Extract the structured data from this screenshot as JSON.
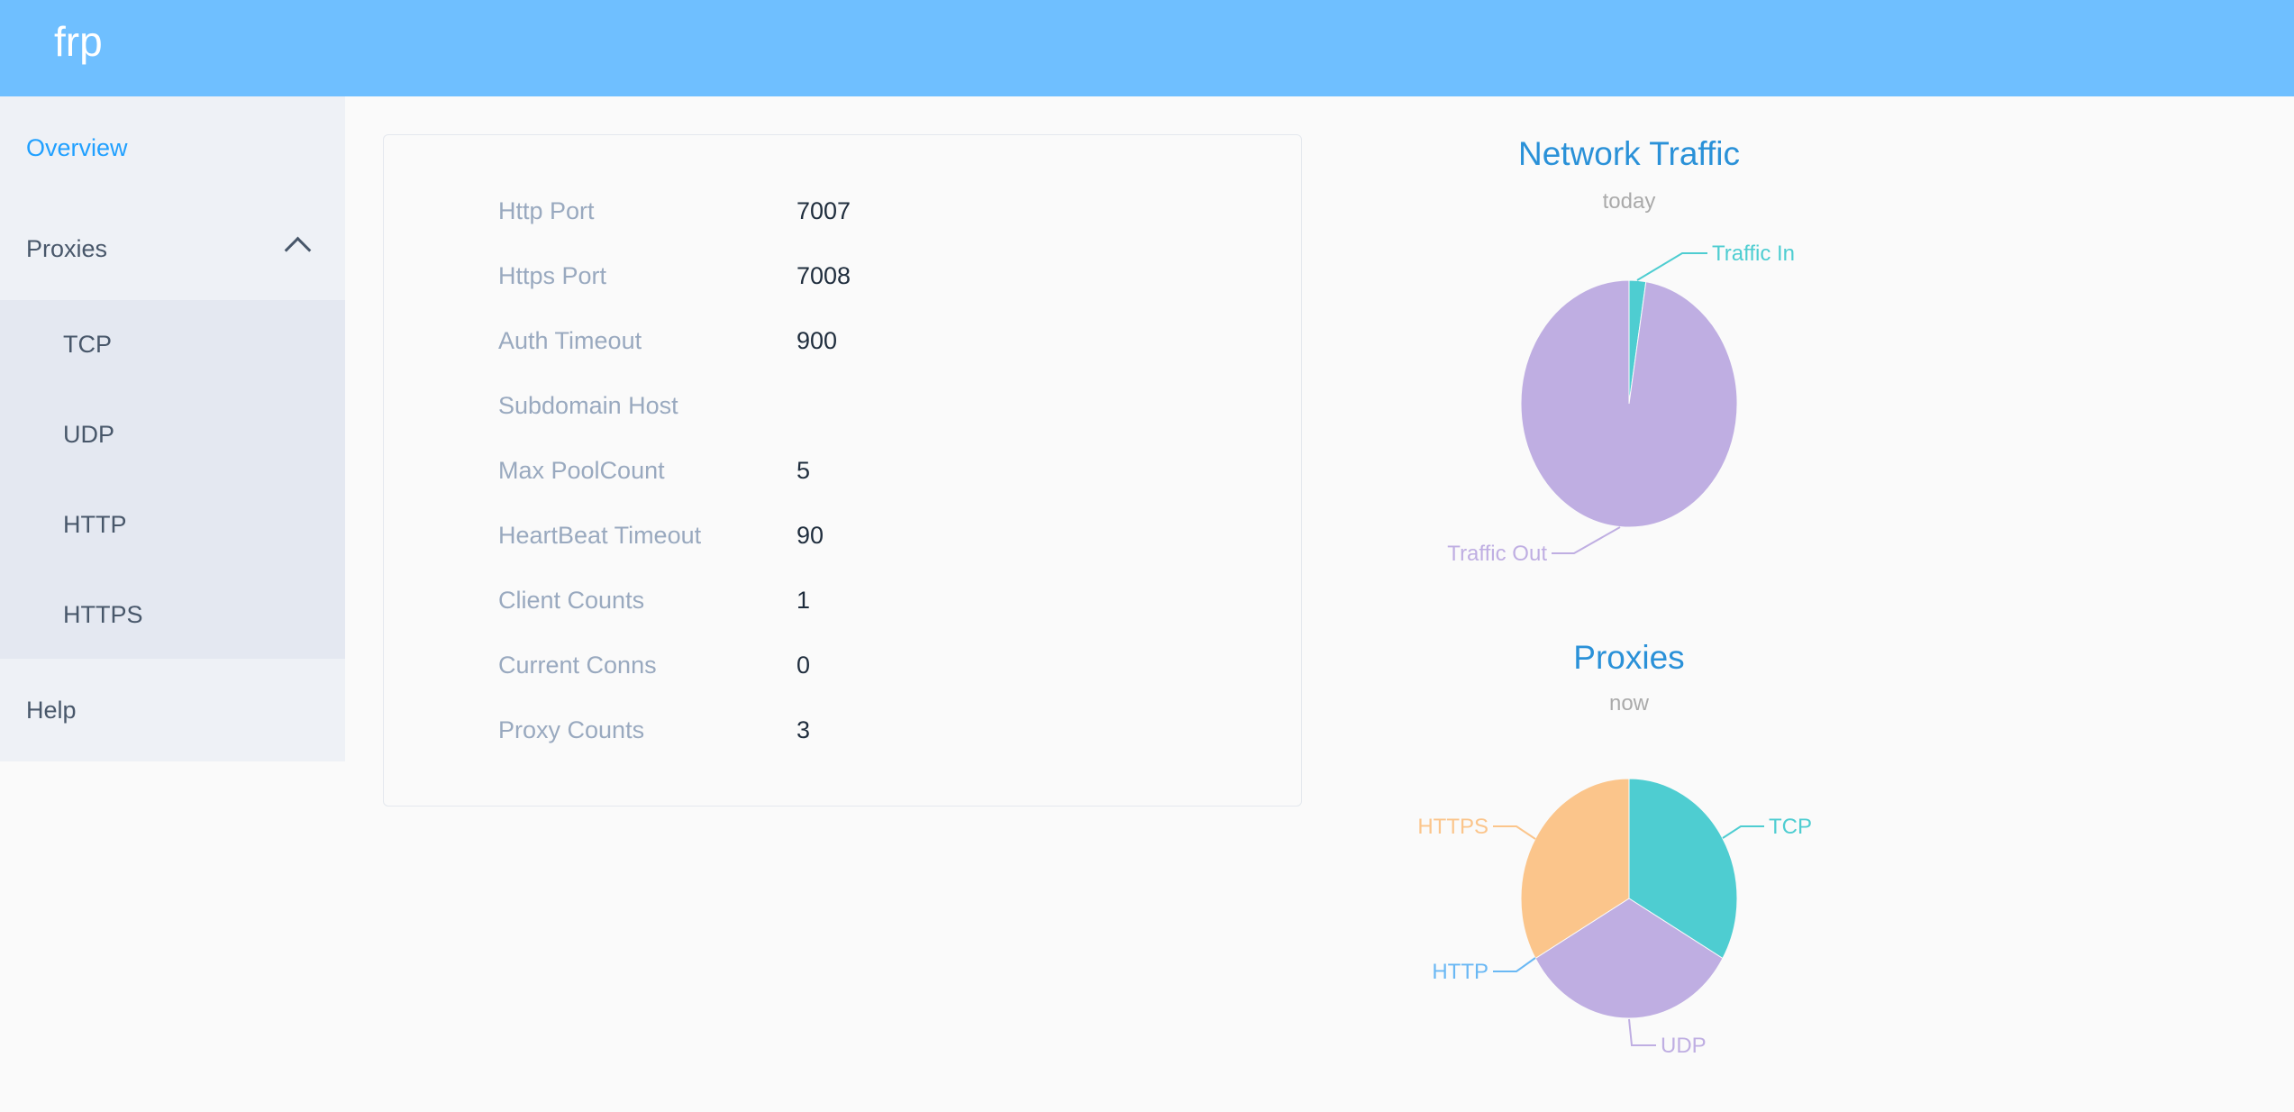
{
  "header": {
    "logo": "frp",
    "color": "#6fbfff"
  },
  "sidebar": {
    "overview": "Overview",
    "proxies": "Proxies",
    "proxies_expanded": true,
    "sub_items": [
      "TCP",
      "UDP",
      "HTTP",
      "HTTPS"
    ],
    "help": "Help"
  },
  "server_info": [
    {
      "label": "Http Port",
      "value": "7007"
    },
    {
      "label": "Https Port",
      "value": "7008"
    },
    {
      "label": "Auth Timeout",
      "value": "900"
    },
    {
      "label": "Subdomain Host",
      "value": ""
    },
    {
      "label": "Max PoolCount",
      "value": "5"
    },
    {
      "label": "HeartBeat Timeout",
      "value": "90"
    },
    {
      "label": "Client Counts",
      "value": "1"
    },
    {
      "label": "Current Conns",
      "value": "0"
    },
    {
      "label": "Proxy Counts",
      "value": "3"
    }
  ],
  "chart_data": [
    {
      "type": "pie",
      "title": "Network Traffic",
      "subtitle": "today",
      "categories": [
        "Traffic In",
        "Traffic Out"
      ],
      "values": [
        2.5,
        97.5
      ],
      "colors": [
        "#4ecdd1",
        "#bfaee2"
      ]
    },
    {
      "type": "pie",
      "title": "Proxies",
      "subtitle": "now",
      "categories": [
        "TCP",
        "UDP",
        "HTTP",
        "HTTPS"
      ],
      "values": [
        1,
        1,
        0,
        1
      ],
      "colors": [
        "#4ecdd1",
        "#bfaee2",
        "#6ab8f4",
        "#fbc58b"
      ]
    }
  ]
}
